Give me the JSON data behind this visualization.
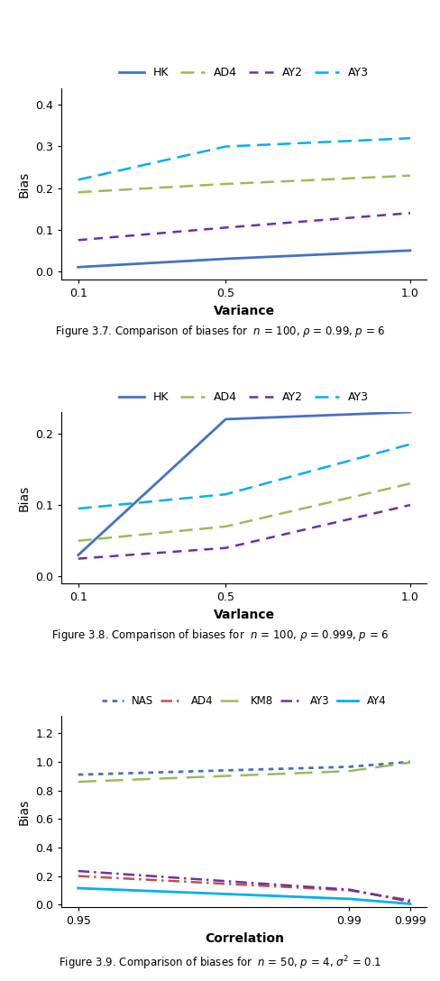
{
  "fig1": {
    "x": [
      0.1,
      0.5,
      1.0
    ],
    "series": {
      "HK": [
        0.01,
        0.03,
        0.05
      ],
      "AD4": [
        0.19,
        0.21,
        0.23
      ],
      "AY2": [
        0.075,
        0.105,
        0.14
      ],
      "AY3": [
        0.22,
        0.3,
        0.32
      ]
    },
    "colors": {
      "HK": "#4472C4",
      "AD4": "#9BBB59",
      "AY2": "#7030A0",
      "AY3": "#00B0F0"
    },
    "dashes": {
      "HK": null,
      "AD4": [
        6,
        3
      ],
      "AY2": [
        4,
        3
      ],
      "AY3": [
        6,
        3
      ]
    },
    "linewidths": {
      "HK": 2.0,
      "AD4": 1.8,
      "AY2": 1.8,
      "AY3": 1.8
    },
    "xlabel": "Variance",
    "ylabel": "Bias",
    "ylim": [
      -0.02,
      0.44
    ],
    "yticks": [
      0.0,
      0.1,
      0.2,
      0.3,
      0.4
    ],
    "xticks": [
      0.1,
      0.5,
      1.0
    ],
    "caption": "Figure 3.7. Comparison of biases for  $n$ = 100, $\\rho$ = 0.99, $p$ = 6"
  },
  "fig2": {
    "x": [
      0.1,
      0.5,
      1.0
    ],
    "series": {
      "HK": [
        0.03,
        0.22,
        0.23
      ],
      "AD4": [
        0.05,
        0.07,
        0.13
      ],
      "AY2": [
        0.025,
        0.04,
        0.1
      ],
      "AY3": [
        0.095,
        0.115,
        0.185
      ]
    },
    "colors": {
      "HK": "#4472C4",
      "AD4": "#9BBB59",
      "AY2": "#7030A0",
      "AY3": "#00B0F0"
    },
    "dashes": {
      "HK": null,
      "AD4": [
        6,
        3
      ],
      "AY2": [
        4,
        3
      ],
      "AY3": [
        6,
        3
      ]
    },
    "linewidths": {
      "HK": 2.0,
      "AD4": 1.8,
      "AY2": 1.8,
      "AY3": 1.8
    },
    "xlabel": "Varlance",
    "ylabel": "Bias",
    "ylim": [
      -0.01,
      0.23
    ],
    "yticks": [
      0.0,
      0.1,
      0.2
    ],
    "xticks": [
      0.1,
      0.5,
      1.0
    ],
    "caption": "Figure 3.8. Comparison of biases for  $n$ = 100, $\\rho$ = 0.999, $p$ = 6"
  },
  "fig3": {
    "x": [
      0.95,
      0.99,
      0.999
    ],
    "series": {
      "NAS": [
        0.91,
        0.965,
        1.0
      ],
      "AD4": [
        0.2,
        0.1,
        0.03
      ],
      "KM8": [
        0.86,
        0.935,
        0.995
      ],
      "AY3": [
        0.235,
        0.105,
        0.02
      ],
      "AY4": [
        0.115,
        0.04,
        0.005
      ]
    },
    "colors": {
      "NAS": "#4472C4",
      "AD4": "#C0504D",
      "KM8": "#9BBB59",
      "AY3": "#7030A0",
      "AY4": "#00B0F0"
    },
    "dashes": {
      "NAS": [
        2,
        2
      ],
      "AD4": [
        5,
        2,
        1,
        2
      ],
      "KM8": [
        8,
        4
      ],
      "AY3": [
        5,
        2,
        1,
        2
      ],
      "AY4": null
    },
    "linewidths": {
      "NAS": 2.0,
      "AD4": 1.8,
      "KM8": 1.8,
      "AY3": 1.8,
      "AY4": 2.0
    },
    "xlabel": "Correlation",
    "ylabel": "Bias",
    "ylim": [
      -0.02,
      1.32
    ],
    "yticks": [
      0.0,
      0.2,
      0.4,
      0.6,
      0.8,
      1.0,
      1.2
    ],
    "xticks": [
      0.95,
      0.99,
      0.999
    ],
    "caption": "Figure 3.9. Comparison of biases for  $n$ = 50, $p$ = 4, $\\sigma^2$ = 0.1"
  },
  "legend1_order": [
    "HK",
    "AD4",
    "AY2",
    "AY3"
  ],
  "legend2_order": [
    "HK",
    "AD4",
    "AY2",
    "AY3"
  ],
  "legend3_order": [
    "NAS",
    "AD4",
    "KM8",
    "AY3",
    "AY4"
  ]
}
